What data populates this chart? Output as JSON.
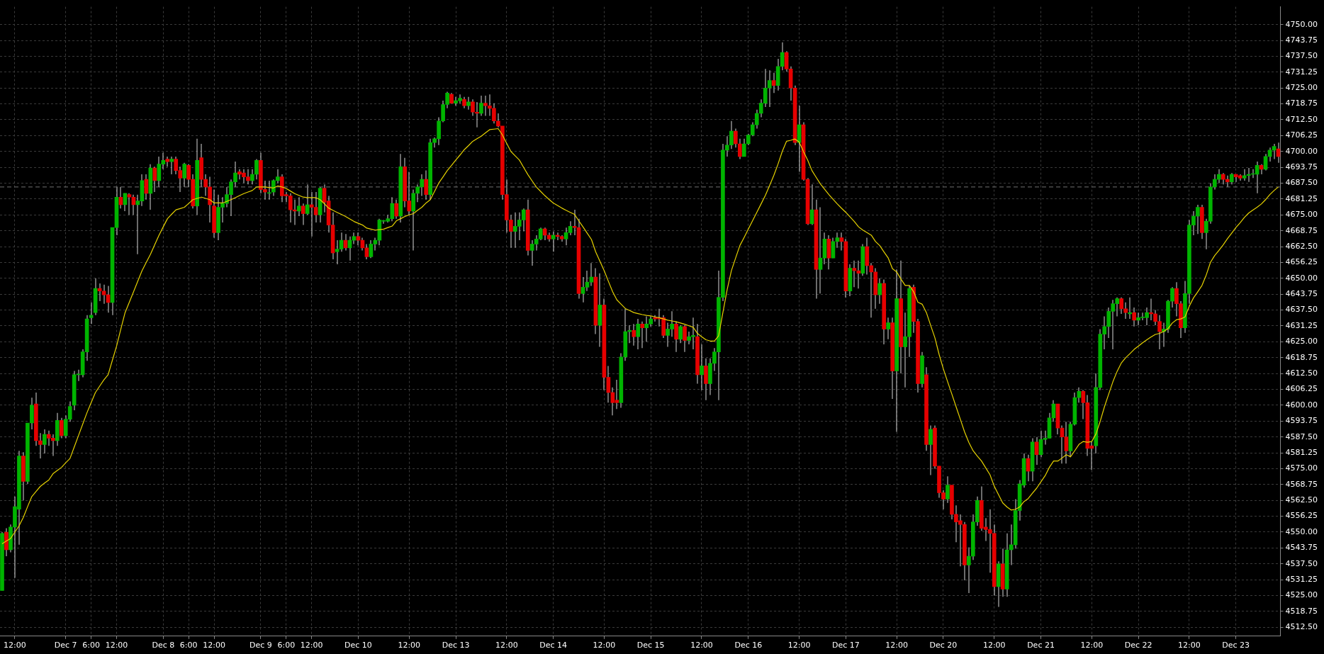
{
  "chart_data": {
    "type": "candlestick",
    "categories": [
      null,
      null,
      null,
      "12:00",
      null,
      null,
      null,
      null,
      null,
      null,
      null,
      null,
      null,
      null,
      null,
      "Dec 7",
      null,
      null,
      null,
      null,
      null,
      "6:00",
      null,
      null,
      null,
      null,
      null,
      "12:00",
      null,
      null,
      null,
      null,
      null,
      null,
      null,
      null,
      null,
      null,
      "Dec 8",
      null,
      null,
      null,
      null,
      null,
      "6:00",
      null,
      null,
      null,
      null,
      null,
      "12:00",
      null,
      null,
      null,
      null,
      null,
      null,
      null,
      null,
      null,
      null,
      "Dec 9",
      null,
      null,
      null,
      null,
      null,
      "6:00",
      null,
      null,
      null,
      null,
      null,
      "12:00",
      null,
      null,
      null,
      null,
      null,
      null,
      null,
      null,
      null,
      null,
      "Dec 10",
      null,
      null,
      null,
      null,
      null,
      null,
      null,
      null,
      null,
      null,
      null,
      "12:00",
      null,
      null,
      null,
      null,
      null,
      null,
      null,
      null,
      null,
      null,
      "Dec 13",
      null,
      null,
      null,
      null,
      null,
      null,
      null,
      null,
      null,
      null,
      null,
      "12:00",
      null,
      null,
      null,
      null,
      null,
      null,
      null,
      null,
      null,
      null,
      "Dec 14",
      null,
      null,
      null,
      null,
      null,
      null,
      null,
      null,
      null,
      null,
      null,
      "12:00",
      null,
      null,
      null,
      null,
      null,
      null,
      null,
      null,
      null,
      null,
      "Dec 15",
      null,
      null,
      null,
      null,
      null,
      null,
      null,
      null,
      null,
      null,
      null,
      "12:00",
      null,
      null,
      null,
      null,
      null,
      null,
      null,
      null,
      null,
      null,
      "Dec 16",
      null,
      null,
      null,
      null,
      null,
      null,
      null,
      null,
      null,
      null,
      null,
      "12:00",
      null,
      null,
      null,
      null,
      null,
      null,
      null,
      null,
      null,
      null,
      "Dec 17",
      null,
      null,
      null,
      null,
      null,
      null,
      null,
      null,
      null,
      null,
      null,
      "12:00",
      null,
      null,
      null,
      null,
      null,
      null,
      null,
      null,
      null,
      null,
      "Dec 20",
      null,
      null,
      null,
      null,
      null,
      null,
      null,
      null,
      null,
      null,
      null,
      "12:00",
      null,
      null,
      null,
      null,
      null,
      null,
      null,
      null,
      null,
      null,
      "Dec 21",
      null,
      null,
      null,
      null,
      null,
      null,
      null,
      null,
      null,
      null,
      null,
      "12:00",
      null,
      null,
      null,
      null,
      null,
      null,
      null,
      null,
      null,
      null,
      "Dec 22",
      null,
      null,
      null,
      null,
      null,
      null,
      null,
      null,
      null,
      null,
      null,
      "12:00",
      null,
      null,
      null,
      null,
      null,
      null,
      null,
      null,
      null,
      null,
      "Dec 23",
      null,
      null,
      null,
      null,
      null,
      null,
      null,
      null,
      null,
      null
    ],
    "ohlc": [
      [
        4527,
        4550,
        4527,
        4549.5
      ],
      [
        4550,
        4551.5,
        4540.5,
        4543
      ],
      [
        4543,
        4553,
        4542,
        4552
      ],
      [
        4552,
        4564,
        4532,
        4560
      ],
      [
        4559,
        4582,
        4545,
        4580
      ],
      [
        4580,
        4581.5,
        4562.5,
        4570
      ],
      [
        4570,
        4593,
        4569,
        4593
      ],
      [
        4593,
        4603,
        4590.5,
        4600
      ],
      [
        4600.5,
        4605,
        4584,
        4586
      ],
      [
        4586,
        4589,
        4579,
        4584.5
      ],
      [
        4584.5,
        4590.5,
        4581,
        4588.5
      ],
      [
        4588.5,
        4590,
        4584,
        4587
      ],
      [
        4587,
        4588.5,
        4580,
        4586
      ],
      [
        4586,
        4597,
        4584,
        4594
      ],
      [
        4594,
        4595,
        4587,
        4588
      ],
      [
        4588,
        4596,
        4587,
        4594.5
      ],
      [
        4594.5,
        4601.5,
        4593.5,
        4599.5
      ],
      [
        4600,
        4613.5,
        4598,
        4612
      ],
      [
        4612,
        4614,
        4609.5,
        4612
      ],
      [
        4612,
        4622,
        4611,
        4621
      ],
      [
        4621,
        4635.5,
        4617.5,
        4634
      ],
      [
        4634.5,
        4640.5,
        4632,
        4635.5
      ],
      [
        4636.5,
        4650,
        4635.5,
        4646
      ],
      [
        4646,
        4648,
        4641,
        4645
      ],
      [
        4645,
        4647.5,
        4640,
        4643.5
      ],
      [
        4643.5,
        4647,
        4636.5,
        4640.5
      ],
      [
        4640.5,
        4670,
        4635.5,
        4670
      ],
      [
        4670,
        4686,
        4667,
        4682
      ],
      [
        4682,
        4686,
        4677.5,
        4679
      ],
      [
        4679,
        4683.5,
        4676.5,
        4683.5
      ],
      [
        4683,
        4683.5,
        4675,
        4682
      ],
      [
        4682,
        4683,
        4675,
        4679
      ],
      [
        4679,
        4683,
        4659.5,
        4680.5
      ],
      [
        4680.5,
        4691,
        4678.5,
        4688.5
      ],
      [
        4689,
        4691,
        4681,
        4683.5
      ],
      [
        4683.5,
        4695,
        4677,
        4693.5
      ],
      [
        4693.5,
        4694,
        4684,
        4688.5
      ],
      [
        4688.5,
        4698,
        4686,
        4695
      ],
      [
        4695,
        4699.5,
        4693,
        4696.5
      ],
      [
        4697,
        4698,
        4694,
        4696
      ],
      [
        4696,
        4698,
        4691,
        4697
      ],
      [
        4697,
        4698,
        4691,
        4692.5
      ],
      [
        4692.5,
        4694,
        4684,
        4689.5
      ],
      [
        4689.5,
        4695.5,
        4686,
        4695
      ],
      [
        4694.5,
        4695,
        4686,
        4689
      ],
      [
        4689,
        4691,
        4677.5,
        4678.5
      ],
      [
        4678.5,
        4705,
        4675,
        4696.5
      ],
      [
        4697.5,
        4703,
        4686,
        4689
      ],
      [
        4689,
        4691,
        4682.5,
        4686
      ],
      [
        4686,
        4690,
        4672,
        4679
      ],
      [
        4678.5,
        4685,
        4666,
        4668
      ],
      [
        4668,
        4683,
        4665,
        4678
      ],
      [
        4678,
        4682,
        4672,
        4679.5
      ],
      [
        4679.5,
        4686,
        4678,
        4683
      ],
      [
        4683,
        4689,
        4674.5,
        4688
      ],
      [
        4688,
        4696,
        4686,
        4691.5
      ],
      [
        4692,
        4693,
        4689,
        4691
      ],
      [
        4691.5,
        4693,
        4687.5,
        4690
      ],
      [
        4690,
        4693,
        4687,
        4688.5
      ],
      [
        4688.5,
        4693,
        4687,
        4691
      ],
      [
        4691,
        4697,
        4689,
        4696.5
      ],
      [
        4696.5,
        4699.5,
        4683.5,
        4685
      ],
      [
        4685,
        4688.5,
        4681,
        4684
      ],
      [
        4683.5,
        4688.5,
        4681,
        4683.5
      ],
      [
        4684,
        4689,
        4682.5,
        4688.5
      ],
      [
        4688.5,
        4693,
        4687.5,
        4690
      ],
      [
        4690,
        4691,
        4680,
        4682.5
      ],
      [
        4683,
        4684,
        4680,
        4682.5
      ],
      [
        4682.5,
        4683.5,
        4672,
        4677
      ],
      [
        4677,
        4681,
        4671,
        4676.5
      ],
      [
        4676.5,
        4682,
        4674.5,
        4678.5
      ],
      [
        4678.5,
        4679.5,
        4671,
        4675.5
      ],
      [
        4675.5,
        4687,
        4675,
        4679
      ],
      [
        4679,
        4684,
        4666.5,
        4678
      ],
      [
        4678,
        4684,
        4672,
        4675
      ],
      [
        4675,
        4686,
        4672,
        4685.5
      ],
      [
        4685.5,
        4687,
        4676,
        4680
      ],
      [
        4680.5,
        4682.5,
        4668,
        4671
      ],
      [
        4671,
        4676,
        4657.5,
        4660
      ],
      [
        4660.5,
        4665,
        4655.5,
        4661.5
      ],
      [
        4661.5,
        4668,
        4660.5,
        4665
      ],
      [
        4665,
        4667.5,
        4661,
        4662
      ],
      [
        4662,
        4666.5,
        4657,
        4665
      ],
      [
        4665,
        4668,
        4663.5,
        4666.5
      ],
      [
        4666.5,
        4668,
        4663,
        4665
      ],
      [
        4665,
        4666,
        4661,
        4662
      ],
      [
        4662,
        4663.5,
        4657.5,
        4658.5
      ],
      [
        4658.5,
        4665,
        4658,
        4663.5
      ],
      [
        4663.5,
        4666,
        4661,
        4665
      ],
      [
        4665,
        4673.5,
        4663,
        4673
      ],
      [
        4672.5,
        4673,
        4671.5,
        4672.5
      ],
      [
        4672.5,
        4675,
        4672,
        4673.5
      ],
      [
        4673.5,
        4682,
        4672.5,
        4679.5
      ],
      [
        4679.5,
        4681,
        4673.5,
        4674.5
      ],
      [
        4674.5,
        4699,
        4672,
        4694
      ],
      [
        4694,
        4697.5,
        4678,
        4680.5
      ],
      [
        4680.5,
        4692,
        4675,
        4676.5
      ],
      [
        4676.5,
        4685,
        4661,
        4683.5
      ],
      [
        4683.5,
        4687,
        4680,
        4686
      ],
      [
        4686,
        4691,
        4682.5,
        4689
      ],
      [
        4689,
        4692.5,
        4681,
        4683
      ],
      [
        4683,
        4705,
        4681,
        4703.5
      ],
      [
        4703.5,
        4705.5,
        4701.5,
        4705
      ],
      [
        4705,
        4713.5,
        4702.5,
        4712
      ],
      [
        4712,
        4720,
        4711.5,
        4718.5
      ],
      [
        4718.5,
        4723.5,
        4717,
        4723
      ],
      [
        4722.5,
        4723,
        4719,
        4719
      ],
      [
        4719,
        4721.5,
        4718,
        4720
      ],
      [
        4720,
        4722.5,
        4719,
        4721
      ],
      [
        4720.5,
        4721.5,
        4717,
        4718
      ],
      [
        4718,
        4721.5,
        4716.5,
        4719.5
      ],
      [
        4719.5,
        4720.5,
        4714,
        4715.5
      ],
      [
        4715.5,
        4719.5,
        4709.5,
        4715
      ],
      [
        4715,
        4722,
        4714,
        4719
      ],
      [
        4719,
        4722,
        4714,
        4718
      ],
      [
        4718,
        4722.5,
        4714,
        4717
      ],
      [
        4717,
        4719,
        4711,
        4712
      ],
      [
        4712,
        4715,
        4709.5,
        4710
      ],
      [
        4710,
        4710,
        4681,
        4683
      ],
      [
        4683,
        4689,
        4668,
        4673
      ],
      [
        4673,
        4675,
        4662,
        4668.5
      ],
      [
        4668.5,
        4676,
        4662,
        4670.5
      ],
      [
        4670.5,
        4676,
        4665,
        4673
      ],
      [
        4673,
        4677.5,
        4668.5,
        4677
      ],
      [
        4677,
        4681,
        4659,
        4661
      ],
      [
        4661,
        4665,
        4655,
        4663.5
      ],
      [
        4663.5,
        4667,
        4661,
        4665.5
      ],
      [
        4665.5,
        4670,
        4665,
        4669.5
      ],
      [
        4669.5,
        4670,
        4665,
        4667
      ],
      [
        4667,
        4668,
        4664.5,
        4665.5
      ],
      [
        4665.5,
        4668.5,
        4660.5,
        4667
      ],
      [
        4667,
        4668,
        4665,
        4666.5
      ],
      [
        4666.5,
        4667,
        4664.5,
        4665.5
      ],
      [
        4665.5,
        4670,
        4663,
        4668
      ],
      [
        4668,
        4672.5,
        4667,
        4670.5
      ],
      [
        4670.5,
        4677,
        4667,
        4670
      ],
      [
        4670,
        4673.5,
        4642,
        4644
      ],
      [
        4644,
        4650.5,
        4640.5,
        4646.5
      ],
      [
        4646.5,
        4653,
        4645,
        4648.5
      ],
      [
        4648.5,
        4656,
        4647,
        4650.5
      ],
      [
        4650.5,
        4654,
        4628,
        4631.5
      ],
      [
        4631.5,
        4652,
        4623,
        4639.5
      ],
      [
        4639.5,
        4642,
        4606,
        4611
      ],
      [
        4611,
        4615.5,
        4601,
        4605
      ],
      [
        4605,
        4607,
        4596,
        4601
      ],
      [
        4602,
        4610,
        4598.5,
        4601
      ],
      [
        4601,
        4620.5,
        4599,
        4619
      ],
      [
        4619,
        4638,
        4617.5,
        4629
      ],
      [
        4629,
        4631.5,
        4624.5,
        4629.5
      ],
      [
        4629.5,
        4632,
        4623.5,
        4627
      ],
      [
        4627,
        4634,
        4622,
        4632
      ],
      [
        4632,
        4633,
        4622.5,
        4630.5
      ],
      [
        4630.5,
        4635,
        4625,
        4632
      ],
      [
        4632,
        4635,
        4631,
        4634
      ],
      [
        4634.5,
        4635.5,
        4633,
        4634
      ],
      [
        4634.5,
        4638,
        4631,
        4634
      ],
      [
        4634.5,
        4635.5,
        4626.5,
        4627.5
      ],
      [
        4627.5,
        4632.5,
        4623,
        4630
      ],
      [
        4630,
        4637,
        4627,
        4632
      ],
      [
        4632,
        4633,
        4621,
        4626
      ],
      [
        4626,
        4631.5,
        4624.5,
        4631
      ],
      [
        4631,
        4631.5,
        4621,
        4625.5
      ],
      [
        4625.5,
        4629,
        4624,
        4627
      ],
      [
        4627,
        4634.5,
        4622,
        4627.5
      ],
      [
        4627,
        4632,
        4608.5,
        4612
      ],
      [
        4612,
        4624,
        4606,
        4615.5
      ],
      [
        4615.5,
        4618.5,
        4602,
        4608.5
      ],
      [
        4608.5,
        4618.5,
        4604,
        4616.5
      ],
      [
        4616.5,
        4622.5,
        4613.5,
        4621
      ],
      [
        4621,
        4653,
        4602,
        4642.5
      ],
      [
        4642.5,
        4703,
        4641,
        4700.5
      ],
      [
        4700.5,
        4706,
        4698,
        4702.5
      ],
      [
        4702.5,
        4712,
        4701,
        4708
      ],
      [
        4708,
        4709,
        4701.5,
        4703
      ],
      [
        4703,
        4705,
        4697,
        4698
      ],
      [
        4698,
        4705,
        4698,
        4703
      ],
      [
        4703,
        4707,
        4702.5,
        4706.5
      ],
      [
        4706.5,
        4711.5,
        4706,
        4710.5
      ],
      [
        4710.5,
        4716.5,
        4709,
        4715
      ],
      [
        4715,
        4720.5,
        4713.5,
        4719
      ],
      [
        4719,
        4732.5,
        4717.5,
        4725
      ],
      [
        4725,
        4732,
        4717.5,
        4728
      ],
      [
        4728,
        4731,
        4723,
        4726
      ],
      [
        4726,
        4736.5,
        4724,
        4733.5
      ],
      [
        4733.5,
        4743,
        4732,
        4739
      ],
      [
        4739,
        4739.5,
        4731.5,
        4732.5
      ],
      [
        4732.5,
        4733.5,
        4720,
        4725
      ],
      [
        4725,
        4726,
        4702.5,
        4703.5
      ],
      [
        4703.5,
        4718,
        4692,
        4710.5
      ],
      [
        4710.5,
        4711.5,
        4688.5,
        4689
      ],
      [
        4689,
        4689.5,
        4671,
        4671.5
      ],
      [
        4671.5,
        4687,
        4671,
        4677
      ],
      [
        4677,
        4681,
        4642,
        4653.5
      ],
      [
        4653.5,
        4678,
        4644,
        4658
      ],
      [
        4658,
        4668,
        4655.5,
        4665.5
      ],
      [
        4665.5,
        4667,
        4653.5,
        4658
      ],
      [
        4658,
        4666,
        4658,
        4664.5
      ],
      [
        4664.5,
        4668,
        4662,
        4666
      ],
      [
        4666,
        4668,
        4661,
        4664.5
      ],
      [
        4664.5,
        4665.5,
        4642.5,
        4645
      ],
      [
        4645,
        4655.5,
        4643,
        4654
      ],
      [
        4654,
        4657,
        4646.5,
        4653
      ],
      [
        4653,
        4657,
        4646,
        4652
      ],
      [
        4652,
        4663.5,
        4651,
        4662.5
      ],
      [
        4662.5,
        4666,
        4651.5,
        4655
      ],
      [
        4655,
        4656,
        4634.5,
        4652.5
      ],
      [
        4652.5,
        4654,
        4638,
        4643.5
      ],
      [
        4643.5,
        4650,
        4640,
        4648
      ],
      [
        4648,
        4649.5,
        4624,
        4630
      ],
      [
        4630,
        4634.5,
        4626,
        4632.5
      ],
      [
        4632.5,
        4634.5,
        4602.5,
        4613.5
      ],
      [
        4613.5,
        4653.5,
        4589.5,
        4642
      ],
      [
        4642,
        4657,
        4612.5,
        4623
      ],
      [
        4623,
        4636.5,
        4607,
        4627
      ],
      [
        4627,
        4647,
        4619,
        4646
      ],
      [
        4646.5,
        4647.5,
        4628.5,
        4633
      ],
      [
        4633,
        4634,
        4605,
        4608.5
      ],
      [
        4608.5,
        4621,
        4607,
        4619.5
      ],
      [
        4612,
        4615,
        4582,
        4584.5
      ],
      [
        4584.5,
        4592,
        4572.5,
        4590.5
      ],
      [
        4591,
        4592,
        4575,
        4576
      ],
      [
        4576,
        4576,
        4563.5,
        4565.5
      ],
      [
        4565.5,
        4566.5,
        4559,
        4563
      ],
      [
        4563,
        4572,
        4561.5,
        4568.5
      ],
      [
        4568.5,
        4568.5,
        4555,
        4557
      ],
      [
        4557,
        4560.5,
        4546,
        4554
      ],
      [
        4554.5,
        4557,
        4536.5,
        4553
      ],
      [
        4553,
        4554,
        4531,
        4537
      ],
      [
        4537,
        4544,
        4526,
        4540.5
      ],
      [
        4540.5,
        4557,
        4539,
        4554
      ],
      [
        4554,
        4564,
        4552.5,
        4562.5
      ],
      [
        4562.5,
        4568,
        4550.5,
        4551.5
      ],
      [
        4552,
        4555.5,
        4546.5,
        4551
      ],
      [
        4551,
        4559,
        4534,
        4549.5
      ],
      [
        4549.5,
        4553,
        4525,
        4528.5
      ],
      [
        4528.5,
        4538.5,
        4520.5,
        4537.5
      ],
      [
        4537.5,
        4543.5,
        4524.5,
        4527.5
      ],
      [
        4527.5,
        4549.5,
        4524.5,
        4543
      ],
      [
        4543,
        4553,
        4537,
        4545
      ],
      [
        4545,
        4563,
        4543.5,
        4558.5
      ],
      [
        4558.5,
        4570.5,
        4554.5,
        4569
      ],
      [
        4568.5,
        4581,
        4567.5,
        4579
      ],
      [
        4579,
        4580.5,
        4570,
        4574
      ],
      [
        4574,
        4587,
        4570,
        4585.5
      ],
      [
        4585.5,
        4587.5,
        4576.5,
        4580.5
      ],
      [
        4580.5,
        4590,
        4579.5,
        4586.5
      ],
      [
        4586.5,
        4590,
        4584.5,
        4587
      ],
      [
        4587,
        4597,
        4587,
        4595
      ],
      [
        4595,
        4602,
        4593.5,
        4600.5
      ],
      [
        4600.5,
        4600.5,
        4588.5,
        4591
      ],
      [
        4591,
        4592,
        4577,
        4587.5
      ],
      [
        4587.5,
        4593.5,
        4577,
        4582
      ],
      [
        4582,
        4593.5,
        4579.5,
        4592.5
      ],
      [
        4592.5,
        4605,
        4592,
        4603
      ],
      [
        4603,
        4607,
        4601,
        4605.5
      ],
      [
        4605.5,
        4606,
        4594.5,
        4601
      ],
      [
        4601,
        4604,
        4580,
        4583
      ],
      [
        4584,
        4585.5,
        4574.5,
        4583
      ],
      [
        4584,
        4612.5,
        4581,
        4607
      ],
      [
        4607,
        4630,
        4606,
        4628
      ],
      [
        4628,
        4635,
        4622,
        4631
      ],
      [
        4631,
        4638.5,
        4626.5,
        4637
      ],
      [
        4637,
        4641.5,
        4622,
        4640
      ],
      [
        4640,
        4642.5,
        4635,
        4642
      ],
      [
        4642,
        4642.5,
        4636,
        4638
      ],
      [
        4638,
        4640.5,
        4634,
        4636.5
      ],
      [
        4636,
        4642.5,
        4634,
        4636.5
      ],
      [
        4636.5,
        4638.5,
        4631,
        4633.5
      ],
      [
        4633.5,
        4636.5,
        4631.5,
        4634.5
      ],
      [
        4634.5,
        4636.5,
        4633.5,
        4634.5
      ],
      [
        4634.5,
        4638.5,
        4631.5,
        4636.5
      ],
      [
        4636.5,
        4642,
        4633.5,
        4636
      ],
      [
        4636,
        4637.5,
        4631.5,
        4633
      ],
      [
        4633,
        4635.5,
        4622,
        4629
      ],
      [
        4629,
        4632.5,
        4623,
        4630
      ],
      [
        4630,
        4641.5,
        4628.5,
        4641
      ],
      [
        4641,
        4646.5,
        4638.5,
        4646
      ],
      [
        4646,
        4648.5,
        4635,
        4640
      ],
      [
        4640,
        4641,
        4626.5,
        4630.5
      ],
      [
        4630.5,
        4649,
        4628.5,
        4644
      ],
      [
        4644,
        4673,
        4640,
        4671
      ],
      [
        4671,
        4676.5,
        4667,
        4674.5
      ],
      [
        4674.5,
        4679,
        4667.5,
        4678
      ],
      [
        4678,
        4679,
        4665.5,
        4668
      ],
      [
        4668,
        4673.5,
        4661.5,
        4672.5
      ],
      [
        4672.5,
        4687.5,
        4671.5,
        4686
      ],
      [
        4686,
        4691,
        4685,
        4689
      ],
      [
        4689,
        4693,
        4687.5,
        4691
      ],
      [
        4691,
        4691.5,
        4687,
        4689
      ],
      [
        4689,
        4690.5,
        4686,
        4688
      ],
      [
        4688,
        4691.5,
        4687,
        4691
      ],
      [
        4691,
        4691,
        4688,
        4690
      ],
      [
        4690.5,
        4691,
        4688.5,
        4689.5
      ],
      [
        4689.5,
        4693,
        4688.5,
        4690.5
      ],
      [
        4690.5,
        4693.5,
        4688,
        4691
      ],
      [
        4691,
        4693,
        4689.5,
        4691
      ],
      [
        4691,
        4696,
        4683.5,
        4694.5
      ],
      [
        4694.5,
        4695,
        4691,
        4693
      ],
      [
        4693,
        4699,
        4692.5,
        4698
      ],
      [
        4698,
        4701.5,
        4696,
        4700.5
      ],
      [
        4700.5,
        4703,
        4697,
        4702
      ],
      [
        4701,
        4703.5,
        4695.5,
        4698
      ]
    ],
    "colors": [
      "#00b400",
      "#e60000",
      "#00b400",
      "#00b400",
      "#00b400",
      "#e60000",
      "#00b400",
      "#00b400",
      "#e60000",
      "#e60000",
      "#00b400",
      "#e60000",
      "#e60000",
      "#00b400",
      "#e60000",
      "#00b400",
      "#00b400",
      "#00b400",
      "#00b400",
      "#00b400",
      "#00b400",
      "#00b400",
      "#00b400",
      "#e60000",
      "#e60000",
      "#e60000",
      "#00b400",
      "#00b400",
      "#e60000",
      "#00b400",
      "#e60000",
      "#e60000",
      "#00b400",
      "#00b400",
      "#e60000",
      "#00b400",
      "#e60000",
      "#00b400",
      "#00b400",
      "#e60000",
      "#00b400",
      "#e60000",
      "#e60000",
      "#00b400",
      "#e60000",
      "#e60000",
      "#00b400",
      "#e60000",
      "#e60000",
      "#e60000",
      "#e60000",
      "#00b400",
      "#00b400",
      "#00b400",
      "#00b400",
      "#00b400",
      "#e60000",
      "#e60000",
      "#e60000",
      "#00b400",
      "#00b400",
      "#e60000",
      "#e60000",
      "#00b400",
      "#00b400",
      "#00b400",
      "#e60000",
      "#e60000",
      "#e60000",
      "#e60000",
      "#00b400",
      "#e60000",
      "#00b400",
      "#e60000",
      "#e60000",
      "#00b400",
      "#e60000",
      "#e60000",
      "#e60000",
      "#00b400",
      "#00b400",
      "#e60000",
      "#00b400",
      "#00b400",
      "#e60000",
      "#e60000",
      "#e60000",
      "#00b400",
      "#00b400",
      "#00b400",
      "#00b400",
      "#00b400",
      "#00b400",
      "#e60000",
      "#00b400",
      "#e60000",
      "#e60000",
      "#00b400",
      "#00b400",
      "#00b400",
      "#e60000",
      "#00b400",
      "#00b400",
      "#00b400",
      "#00b400",
      "#00b400",
      "#e60000",
      "#00b400",
      "#00b400",
      "#e60000",
      "#00b400",
      "#e60000",
      "#e60000",
      "#00b400",
      "#e60000",
      "#e60000",
      "#e60000",
      "#e60000",
      "#e60000",
      "#e60000",
      "#e60000",
      "#00b400",
      "#00b400",
      "#00b400",
      "#e60000",
      "#00b400",
      "#00b400",
      "#00b400",
      "#e60000",
      "#e60000",
      "#00b400",
      "#e60000",
      "#e60000",
      "#00b400",
      "#00b400",
      "#e60000",
      "#e60000",
      "#00b400",
      "#00b400",
      "#00b400",
      "#e60000",
      "#00b400",
      "#e60000",
      "#e60000",
      "#e60000",
      "#e60000",
      "#00b400",
      "#00b400",
      "#00b400",
      "#e60000",
      "#00b400",
      "#e60000",
      "#00b400",
      "#00b400",
      "#e60000",
      "#e60000",
      "#e60000",
      "#00b400",
      "#00b400",
      "#e60000",
      "#00b400",
      "#e60000",
      "#00b400",
      "#00b400",
      "#e60000",
      "#00b400",
      "#e60000",
      "#00b400",
      "#00b400",
      "#00b400",
      "#00b400",
      "#00b400",
      "#00b400",
      "#e60000",
      "#e60000",
      "#00b400",
      "#00b400",
      "#00b400",
      "#00b400",
      "#00b400",
      "#00b400",
      "#00b400",
      "#e60000",
      "#00b400",
      "#00b400",
      "#e60000",
      "#e60000",
      "#e60000",
      "#00b400",
      "#e60000",
      "#e60000",
      "#00b400",
      "#e60000",
      "#00b400",
      "#00b400",
      "#e60000",
      "#00b400",
      "#00b400",
      "#e60000",
      "#e60000",
      "#00b400",
      "#e60000",
      "#e60000",
      "#00b400",
      "#e60000",
      "#e60000",
      "#e60000",
      "#00b400",
      "#e60000",
      "#00b400",
      "#e60000",
      "#00b400",
      "#e60000",
      "#00b400",
      "#00b400",
      "#e60000",
      "#e60000",
      "#00b400",
      "#e60000",
      "#00b400",
      "#e60000",
      "#e60000",
      "#e60000",
      "#00b400",
      "#e60000",
      "#e60000",
      "#e60000",
      "#e60000",
      "#00b400",
      "#00b400",
      "#00b400",
      "#e60000",
      "#e60000",
      "#e60000",
      "#e60000",
      "#00b400",
      "#e60000",
      "#00b400",
      "#00b400",
      "#00b400",
      "#00b400",
      "#00b400",
      "#e60000",
      "#00b400",
      "#e60000",
      "#00b400",
      "#00b400",
      "#00b400",
      "#00b400",
      "#e60000",
      "#e60000",
      "#e60000",
      "#00b400",
      "#00b400",
      "#00b400",
      "#e60000",
      "#e60000",
      "#e60000",
      "#00b400",
      "#00b400",
      "#00b400",
      "#00b400",
      "#00b400",
      "#00b400",
      "#e60000",
      "#e60000",
      "#00b400",
      "#e60000",
      "#00b400",
      "#00b400",
      "#00b400",
      "#e60000",
      "#e60000",
      "#e60000",
      "#00b400",
      "#00b400",
      "#00b400",
      "#e60000",
      "#e60000",
      "#00b400",
      "#00b400",
      "#00b400",
      "#00b400",
      "#e60000",
      "#00b400",
      "#00b400",
      "#00b400",
      "#00b400",
      "#e60000",
      "#e60000",
      "#00b400",
      "#e60000",
      "#e60000",
      "#00b400",
      "#00b400",
      "#00b400",
      "#00b400",
      "#e60000",
      "#00b400",
      "#00b400",
      "#00b400",
      "#e60000"
    ],
    "series": [
      {
        "type": "line",
        "color": "#e6d200",
        "values": [
          4545.4,
          4546.5,
          4547.5,
          4550,
          4552.5,
          4555.8,
          4560,
          4564,
          4566,
          4568,
          4569.3,
          4570.5,
          4573,
          4574.3,
          4575.5,
          4577.3,
          4579,
          4583.5,
          4588,
          4592.5,
          4597,
          4601,
          4605,
          4607.5,
          4610,
          4612,
          4617.7,
          4623.3,
          4630,
          4636.5,
          4640.6,
          4644.7,
          4648.9,
          4653,
          4656.3,
          4659.5,
          4663.3,
          4667,
          4670.3,
          4673.5,
          4675.3,
          4677,
          4677.5,
          4678,
          4679.5,
          4681,
          4681.5,
          4682,
          4681.5,
          4681,
          4679.7,
          4679.7,
          4679.7,
          4680.3,
          4681,
          4681.8,
          4682.6,
          4683.4,
          4684,
          4684.6,
          4686,
          4686,
          4686,
          4685.8,
          4685.6,
          4686.4,
          4686,
          4685.4,
          4684.4,
          4683.4,
          4682.7,
          4682,
          4681.8,
          4681.8,
          4681.8,
          4681,
          4679.4,
          4677.7,
          4676.8,
          4676,
          4675.2,
          4674.4,
          4673.4,
          4672.4,
          4671.7,
          4671,
          4669.8,
          4669.4,
          4669,
          4669.2,
          4669.4,
          4670,
          4670.6,
          4672.7,
          4673.5,
          4674.4,
          4675,
          4675.5,
          4676.8,
          4678,
          4679.7,
          4681,
          4684.3,
          4687.6,
          4690,
          4692.5,
          4694.5,
          4696.6,
          4698.6,
          4700.7,
          4702.3,
          4704,
          4705,
          4706,
          4707.3,
          4708.6,
          4708.8,
          4709,
          4706.5,
          4703.2,
          4700,
          4698.3,
          4696.6,
          4693.7,
          4690.9,
          4688.4,
          4686,
          4684.3,
          4682.6,
          4681.1,
          4679.7,
          4678.7,
          4677.7,
          4676.8,
          4676,
          4675.2,
          4672.7,
          4670.3,
          4667.8,
          4665.3,
          4660.4,
          4656.7,
          4653,
          4648.8,
          4644.7,
          4641.5,
          4639.8,
          4638.1,
          4637.3,
          4636.5,
          4636.1,
          4635.7,
          4635.4,
          4635.2,
          4634.8,
          4634.5,
          4634,
          4633.5,
          4633.2,
          4632.9,
          4632.4,
          4631.9,
          4631.3,
          4630.7,
          4628.3,
          4627,
          4625.8,
          4625.3,
          4625.3,
          4627.4,
          4636.5,
          4645.5,
          4653,
          4658,
          4662.9,
          4666.1,
          4669.4,
          4672.7,
          4676,
          4679.3,
          4682.6,
          4686.5,
          4690.5,
          4695,
          4700,
          4704,
          4704.4,
          4704.9,
          4703.7,
          4700,
          4696.6,
          4692.5,
          4689.8,
          4687.2,
          4685.1,
          4683,
          4681.1,
          4679.3,
          4677.6,
          4676,
          4674.2,
          4672.4,
          4670.3,
          4669,
          4668,
          4667,
          4664.5,
          4662.9,
          4660.4,
          4658,
          4653.8,
          4652.5,
          4649.7,
          4647.2,
          4647.2,
          4644.7,
          4640.6,
          4639.8,
          4636.5,
          4631.5,
          4626.6,
          4620,
          4614.3,
          4609.3,
          4604.4,
          4599.4,
          4594.5,
          4589.5,
          4585.4,
          4582.1,
          4580,
          4578,
          4575.3,
          4572.6,
          4568.1,
          4564.8,
          4561.5,
          4559.9,
          4558.7,
          4559,
          4559.9,
          4562,
          4563.2,
          4565.3,
          4567.3,
          4569.8,
          4572.2,
          4575.5,
          4578,
          4578,
          4579.2,
          4580.5,
          4579.7,
          4582.1,
          4584.6,
          4585.7,
          4585.4,
          4585.7,
          4588.7,
          4593.7,
          4599.4,
          4604.4,
          4609.3,
          4613.4,
          4616.7,
          4618.7,
          4620.3,
          4622,
          4623.3,
          4624.6,
          4625.8,
          4626.9,
          4627.9,
          4628.3,
          4629.1,
          4630.2,
          4632.4,
          4633.7,
          4634,
          4634.8,
          4639,
          4642.3,
          4644.7,
          4647.2,
          4651.3,
          4656.3,
          4659,
          4661,
          4663.2,
          4665.6,
          4667.8,
          4670,
          4671.9,
          4674,
          4675.7,
          4676.9,
          4678,
          4679.3,
          4681,
          4683,
          4684.6,
          4686
        ]
      }
    ],
    "ylim": [
      4509,
      4757
    ],
    "yticks": [
      {
        "value": 4512.5,
        "label": "4512.50"
      },
      {
        "value": 4518.75,
        "label": "4518.75"
      },
      {
        "value": 4525,
        "label": "4525.00"
      },
      {
        "value": 4531.25,
        "label": "4531.25"
      },
      {
        "value": 4537.5,
        "label": "4537.50"
      },
      {
        "value": 4543.75,
        "label": "4543.75"
      },
      {
        "value": 4550,
        "label": "4550.00"
      },
      {
        "value": 4556.25,
        "label": "4556.25"
      },
      {
        "value": 4562.5,
        "label": "4562.50"
      },
      {
        "value": 4568.75,
        "label": "4568.75"
      },
      {
        "value": 4575,
        "label": "4575.00"
      },
      {
        "value": 4581.25,
        "label": "4581.25"
      },
      {
        "value": 4587.5,
        "label": "4587.50"
      },
      {
        "value": 4593.75,
        "label": "4593.75"
      },
      {
        "value": 4600,
        "label": "4600.00"
      },
      {
        "value": 4606.25,
        "label": "4606.25"
      },
      {
        "value": 4612.5,
        "label": "4612.50"
      },
      {
        "value": 4618.75,
        "label": "4618.75"
      },
      {
        "value": 4625,
        "label": "4625.00"
      },
      {
        "value": 4631.25,
        "label": "4631.25"
      },
      {
        "value": 4637.5,
        "label": "4637.50"
      },
      {
        "value": 4643.75,
        "label": "4643.75"
      },
      {
        "value": 4650,
        "label": "4650.00"
      },
      {
        "value": 4656.25,
        "label": "4656.25"
      },
      {
        "value": 4662.5,
        "label": "4662.50"
      },
      {
        "value": 4668.75,
        "label": "4668.75"
      },
      {
        "value": 4675,
        "label": "4675.00"
      },
      {
        "value": 4681.25,
        "label": "4681.25"
      },
      {
        "value": 4687.5,
        "label": "4687.50"
      },
      {
        "value": 4693.75,
        "label": "4693.75"
      },
      {
        "value": 4700,
        "label": "4700.00"
      },
      {
        "value": 4706.25,
        "label": "4706.25"
      },
      {
        "value": 4712.5,
        "label": "4712.50"
      },
      {
        "value": 4718.75,
        "label": "4718.75"
      },
      {
        "value": 4725,
        "label": "4725.00"
      },
      {
        "value": 4731.25,
        "label": "4731.25"
      },
      {
        "value": 4737.5,
        "label": "4737.50"
      },
      {
        "value": 4743.75,
        "label": "4743.75"
      },
      {
        "value": 4750,
        "label": "4750.00"
      }
    ],
    "grid": true,
    "ref_lines": [
      {
        "axis": "y",
        "value": 4686,
        "color": "#707070",
        "line_style": "dashed"
      }
    ]
  }
}
